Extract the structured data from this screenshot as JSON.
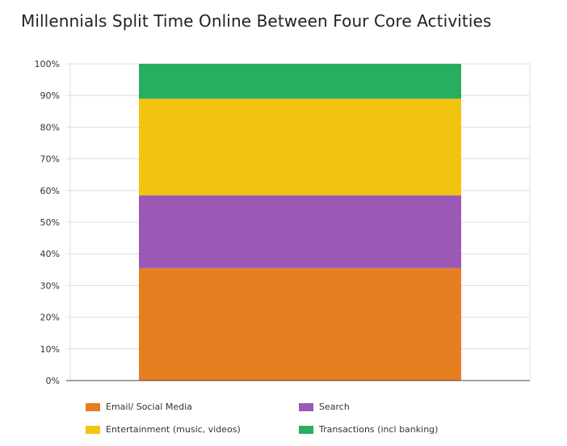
{
  "title": "Millennials Split Time Online Between Four Core Activities",
  "chart_data": {
    "type": "bar",
    "stacked": true,
    "categories": [
      ""
    ],
    "ylim": [
      0,
      100
    ],
    "y_ticks": [
      "0%",
      "10%",
      "20%",
      "30%",
      "40%",
      "50%",
      "60%",
      "70%",
      "80%",
      "90%",
      "100%"
    ],
    "grid": true,
    "legend_position": "bottom",
    "series": [
      {
        "name": "Email/ Social Media",
        "values": [
          35.5
        ],
        "color": "#E67E22"
      },
      {
        "name": "Search",
        "values": [
          23
        ],
        "color": "#9B59B6"
      },
      {
        "name": "Entertainment (music, videos)",
        "values": [
          30.5
        ],
        "color": "#F1C40F"
      },
      {
        "name": "Transactions (incl banking)",
        "values": [
          11
        ],
        "color": "#27AE60"
      }
    ]
  }
}
